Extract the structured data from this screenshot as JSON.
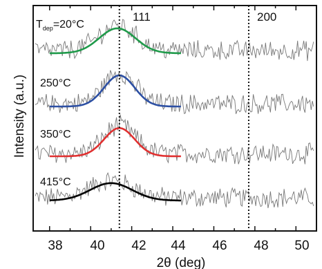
{
  "chart_data": {
    "type": "line",
    "title": "",
    "xlabel": "2θ (deg)",
    "ylabel": "Intensity (a.u.)",
    "xlim": [
      37.2,
      51.0
    ],
    "x_ticks": [
      38,
      40,
      42,
      44,
      46,
      48,
      50
    ],
    "x_tick_labels": [
      "38",
      "40",
      "42",
      "44",
      "46",
      "48",
      "50"
    ],
    "grid": false,
    "legend": "none",
    "reference_lines": [
      {
        "x": 41.4,
        "label": "111"
      },
      {
        "x": 47.7,
        "label": "200"
      }
    ],
    "series_label_prefix": "T",
    "series_label_subscript": "dep",
    "series_label_eq": "=20°C",
    "series": [
      {
        "name": "20°C",
        "offset": 3.0,
        "noise_color": "#777777",
        "fit_color": "#000000",
        "fit_center": 41.0,
        "fit_width": 1.45,
        "fit_amplitude": 0.42,
        "fit_range": [
          38.0,
          44.4
        ]
      },
      {
        "name": "250°C",
        "offset": 2.0,
        "noise_color": "#777777",
        "fit_color": "#e03030",
        "fit_center": 41.4,
        "fit_width": 1.05,
        "fit_amplitude": 0.68,
        "fit_range": [
          38.0,
          44.4
        ]
      },
      {
        "name": "350°C",
        "offset": 1.0,
        "noise_color": "#777777",
        "fit_color": "#2c4fa3",
        "fit_center": 41.4,
        "fit_width": 1.05,
        "fit_amplitude": 0.75,
        "fit_range": [
          38.0,
          44.4
        ]
      },
      {
        "name": "415°C",
        "offset": 0.0,
        "noise_color": "#777777",
        "fit_color": "#1f9a4a",
        "fit_center": 41.3,
        "fit_width": 1.25,
        "fit_amplitude": 0.6,
        "fit_range": [
          38.0,
          44.4
        ]
      }
    ]
  }
}
